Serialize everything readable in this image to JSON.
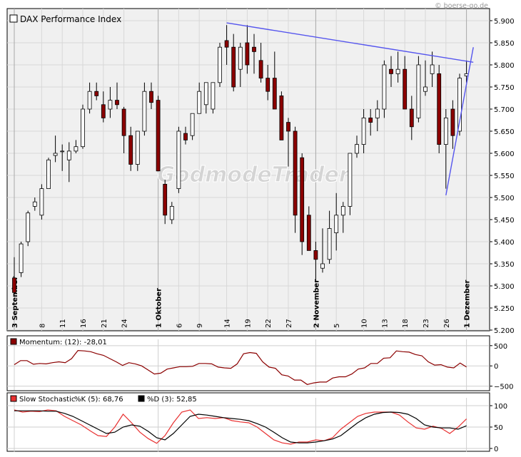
{
  "copyright": "© boerse-go.de",
  "watermark": "GodmodeTrader",
  "chart_data": [
    {
      "type": "candlestick",
      "title": "DAX Performance Index",
      "ylim": [
        5200,
        5910
      ],
      "y_ticks": [
        "5.900",
        "5.850",
        "5.800",
        "5.750",
        "5.700",
        "5.650",
        "5.600",
        "5.550",
        "5.500",
        "5.450",
        "5.400",
        "5.350",
        "5.300",
        "5.250",
        "5.200"
      ],
      "y_tick_values": [
        5900,
        5850,
        5800,
        5750,
        5700,
        5650,
        5600,
        5550,
        5500,
        5450,
        5400,
        5350,
        5300,
        5250,
        5200
      ],
      "x_labels": [
        {
          "i": 0,
          "text": "3 September",
          "month": true
        },
        {
          "i": 4,
          "text": "8"
        },
        {
          "i": 7,
          "text": "11"
        },
        {
          "i": 10,
          "text": "16"
        },
        {
          "i": 13,
          "text": "21"
        },
        {
          "i": 16,
          "text": "24"
        },
        {
          "i": 21,
          "text": "1 Oktober",
          "month": true
        },
        {
          "i": 24,
          "text": "6"
        },
        {
          "i": 27,
          "text": "9"
        },
        {
          "i": 31,
          "text": "14"
        },
        {
          "i": 34,
          "text": "19"
        },
        {
          "i": 37,
          "text": "22"
        },
        {
          "i": 40,
          "text": "27"
        },
        {
          "i": 44,
          "text": "2 November",
          "month": true
        },
        {
          "i": 47,
          "text": "5"
        },
        {
          "i": 51,
          "text": "10"
        },
        {
          "i": 54,
          "text": "13"
        },
        {
          "i": 57,
          "text": "18"
        },
        {
          "i": 60,
          "text": "23"
        },
        {
          "i": 63,
          "text": "26"
        },
        {
          "i": 66,
          "text": "1 Dezember",
          "month": true
        }
      ],
      "grid": true,
      "colors": {
        "up": "#ffffff",
        "down": "#8b0000",
        "trendline": "#5555ee",
        "grid": "#d8d8d8",
        "bg": "#f0f0f0"
      },
      "candles": [
        [
          5318,
          5365,
          5280,
          5285
        ],
        [
          5330,
          5400,
          5320,
          5395
        ],
        [
          5400,
          5470,
          5390,
          5465
        ],
        [
          5480,
          5500,
          5470,
          5490
        ],
        [
          5460,
          5530,
          5450,
          5520
        ],
        [
          5520,
          5590,
          5520,
          5585
        ],
        [
          5595,
          5640,
          5580,
          5600
        ],
        [
          5605,
          5620,
          5560,
          5605
        ],
        [
          5585,
          5625,
          5535,
          5605
        ],
        [
          5605,
          5630,
          5600,
          5615
        ],
        [
          5615,
          5710,
          5610,
          5700
        ],
        [
          5700,
          5760,
          5690,
          5740
        ],
        [
          5740,
          5760,
          5720,
          5730
        ],
        [
          5710,
          5740,
          5670,
          5680
        ],
        [
          5700,
          5750,
          5680,
          5720
        ],
        [
          5720,
          5760,
          5700,
          5710
        ],
        [
          5700,
          5705,
          5600,
          5640
        ],
        [
          5640,
          5660,
          5560,
          5575
        ],
        [
          5575,
          5650,
          5560,
          5650
        ],
        [
          5650,
          5760,
          5640,
          5740
        ],
        [
          5740,
          5760,
          5700,
          5715
        ],
        [
          5720,
          5730,
          5560,
          5560
        ],
        [
          5530,
          5540,
          5440,
          5460
        ],
        [
          5450,
          5490,
          5440,
          5480
        ],
        [
          5520,
          5660,
          5510,
          5650
        ],
        [
          5645,
          5660,
          5620,
          5630
        ],
        [
          5640,
          5690,
          5630,
          5690
        ],
        [
          5690,
          5760,
          5690,
          5740
        ],
        [
          5710,
          5760,
          5690,
          5760
        ],
        [
          5700,
          5760,
          5690,
          5760
        ],
        [
          5760,
          5850,
          5750,
          5840
        ],
        [
          5855,
          5890,
          5800,
          5840
        ],
        [
          5840,
          5870,
          5740,
          5750
        ],
        [
          5790,
          5850,
          5750,
          5840
        ],
        [
          5850,
          5890,
          5780,
          5800
        ],
        [
          5840,
          5870,
          5780,
          5830
        ],
        [
          5810,
          5850,
          5760,
          5770
        ],
        [
          5770,
          5800,
          5720,
          5740
        ],
        [
          5770,
          5830,
          5700,
          5700
        ],
        [
          5730,
          5740,
          5630,
          5630
        ],
        [
          5670,
          5680,
          5570,
          5650
        ],
        [
          5650,
          5660,
          5420,
          5460
        ],
        [
          5590,
          5600,
          5370,
          5400
        ],
        [
          5460,
          5480,
          5380,
          5380
        ],
        [
          5380,
          5400,
          5310,
          5360
        ],
        [
          5340,
          5430,
          5330,
          5350
        ],
        [
          5360,
          5470,
          5350,
          5430
        ],
        [
          5420,
          5510,
          5380,
          5460
        ],
        [
          5460,
          5490,
          5420,
          5480
        ],
        [
          5480,
          5600,
          5460,
          5600
        ],
        [
          5600,
          5640,
          5590,
          5620
        ],
        [
          5620,
          5700,
          5600,
          5680
        ],
        [
          5680,
          5700,
          5640,
          5670
        ],
        [
          5680,
          5720,
          5650,
          5700
        ],
        [
          5700,
          5810,
          5680,
          5800
        ],
        [
          5790,
          5820,
          5750,
          5780
        ],
        [
          5780,
          5830,
          5760,
          5790
        ],
        [
          5790,
          5820,
          5700,
          5700
        ],
        [
          5700,
          5730,
          5630,
          5660
        ],
        [
          5680,
          5820,
          5670,
          5800
        ],
        [
          5740,
          5810,
          5730,
          5750
        ],
        [
          5780,
          5830,
          5750,
          5800
        ],
        [
          5780,
          5800,
          5600,
          5620
        ],
        [
          5620,
          5700,
          5520,
          5680
        ],
        [
          5700,
          5720,
          5610,
          5640
        ],
        [
          5650,
          5780,
          5640,
          5770
        ],
        [
          5775,
          5810,
          5760,
          5780
        ]
      ],
      "trendlines": [
        {
          "from": [
            31,
            5895
          ],
          "to": [
            67,
            5806
          ]
        },
        {
          "from": [
            63,
            5505
          ],
          "to": [
            67,
            5840
          ]
        }
      ]
    },
    {
      "type": "line",
      "title": "Momentum: (12): -28,01",
      "ylim": [
        -560,
        620
      ],
      "y_ticks": [
        "500",
        "0",
        "−500"
      ],
      "y_tick_values": [
        500,
        0,
        -500
      ],
      "series": [
        {
          "name": "Momentum",
          "color": "#8b0000",
          "values": [
            30,
            130,
            130,
            40,
            60,
            50,
            80,
            100,
            80,
            180,
            380,
            370,
            350,
            300,
            260,
            180,
            100,
            10,
            80,
            50,
            0,
            -100,
            -200,
            -180,
            -80,
            -50,
            -20,
            -20,
            -10,
            60,
            60,
            50,
            -30,
            -50,
            -60,
            50,
            300,
            330,
            310,
            100,
            -30,
            -60,
            -220,
            -250,
            -350,
            -350,
            -460,
            -420,
            -400,
            -400,
            -300,
            -270,
            -270,
            -200,
            -80,
            -50,
            60,
            60,
            190,
            200,
            370,
            350,
            340,
            280,
            250,
            100,
            20,
            30,
            -30,
            -50,
            70,
            -28
          ]
        }
      ]
    },
    {
      "type": "line",
      "title": "Slow Stochastic",
      "ylim": [
        -5,
        115
      ],
      "y_ticks": [
        "100",
        "50",
        "0"
      ],
      "y_tick_values": [
        100,
        50,
        0
      ],
      "series": [
        {
          "name": "%K (5): 68,76",
          "color": "#e83030",
          "values": [
            90,
            85,
            87,
            86,
            90,
            88,
            75,
            65,
            55,
            42,
            30,
            28,
            50,
            80,
            60,
            38,
            23,
            12,
            30,
            60,
            85,
            90,
            70,
            72,
            70,
            72,
            65,
            62,
            60,
            50,
            35,
            20,
            13,
            10,
            15,
            15,
            20,
            18,
            25,
            45,
            60,
            75,
            82,
            85,
            85,
            85,
            78,
            62,
            48,
            45,
            52,
            47,
            35,
            50,
            69
          ]
        },
        {
          "name": "%D (3): 52,85",
          "color": "#000000",
          "values": [
            88,
            88,
            88,
            88,
            87,
            87,
            82,
            75,
            65,
            55,
            45,
            35,
            38,
            50,
            55,
            52,
            40,
            25,
            20,
            35,
            55,
            75,
            80,
            78,
            75,
            72,
            70,
            68,
            65,
            58,
            50,
            38,
            25,
            15,
            13,
            13,
            15,
            18,
            22,
            30,
            45,
            60,
            72,
            80,
            84,
            85,
            84,
            80,
            70,
            55,
            50,
            48,
            48,
            45,
            53
          ]
        }
      ]
    }
  ]
}
